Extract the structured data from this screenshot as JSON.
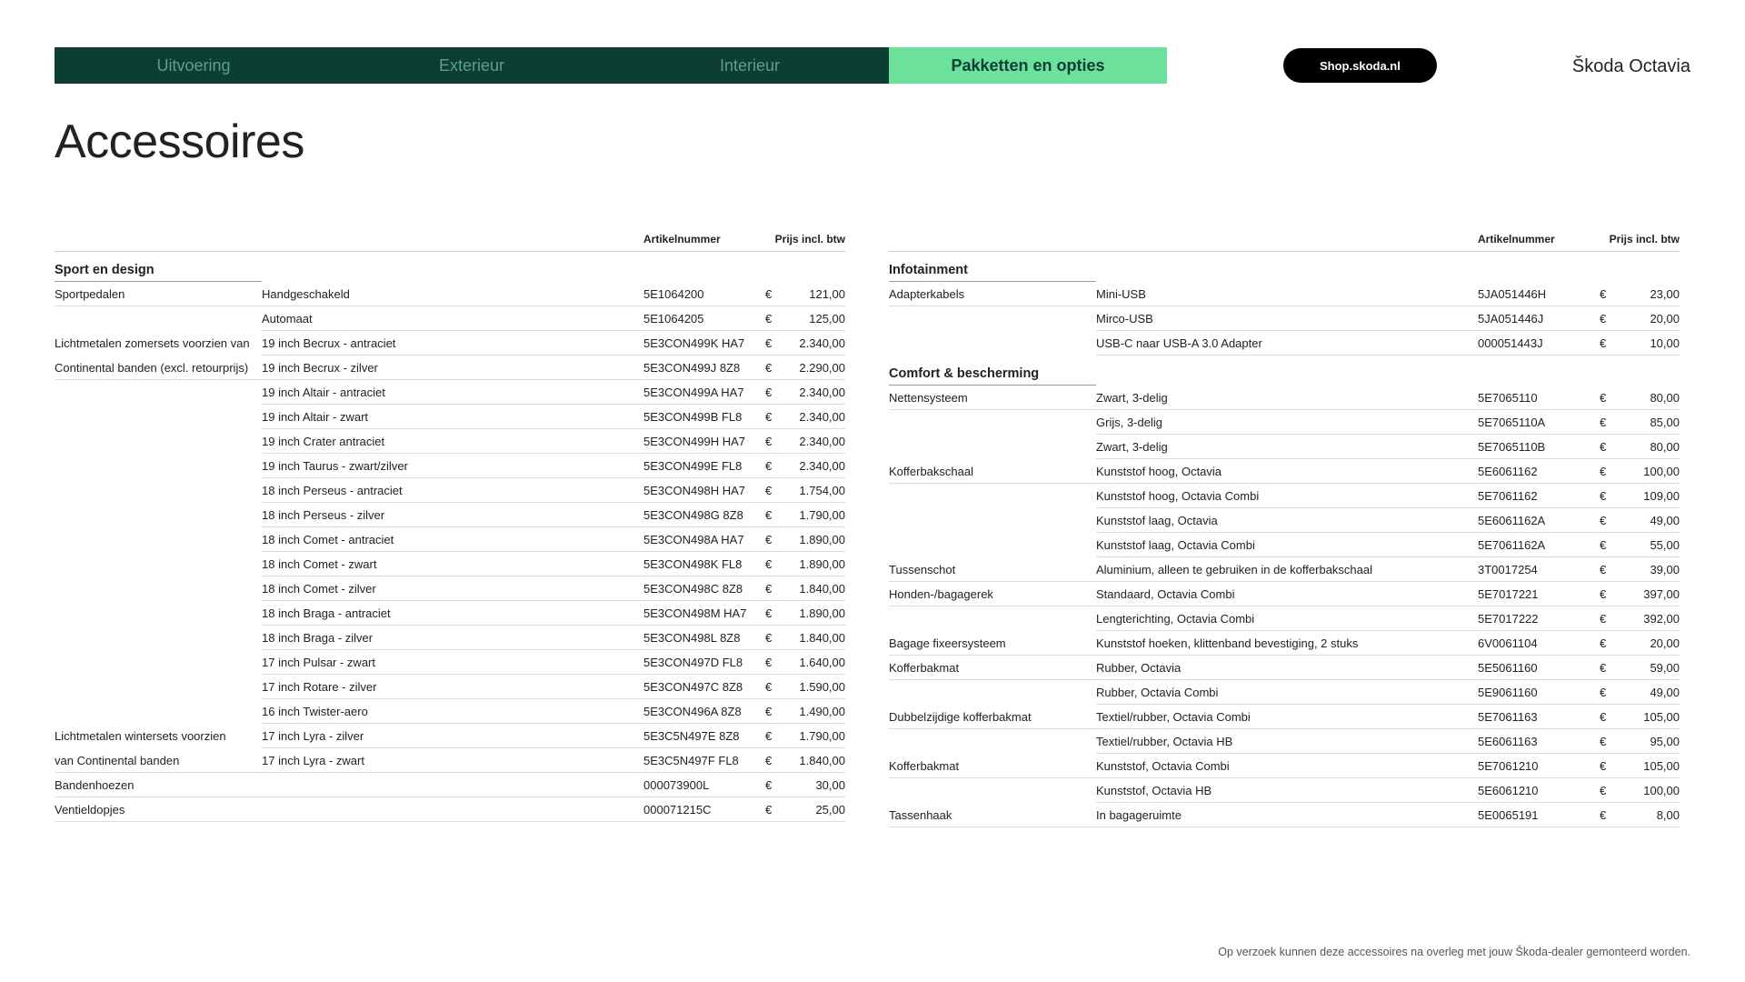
{
  "nav": {
    "tabs": [
      {
        "label": "Uitvoering",
        "active": false
      },
      {
        "label": "Exterieur",
        "active": false
      },
      {
        "label": "Interieur",
        "active": false
      },
      {
        "label": "Pakketten en opties",
        "active": true
      }
    ],
    "shop_button": "Shop.skoda.nl",
    "brand": "Škoda Octavia"
  },
  "page_title": "Accessoires",
  "columns_header": {
    "article": "Artikelnummer",
    "price": "Prijs incl. btw"
  },
  "currency": "€",
  "left": [
    {
      "section": "Sport en design",
      "rows": [
        {
          "cat": "Sportpedalen",
          "cat_border": true,
          "desc": "Handgeschakeld",
          "art": "5E1064200",
          "price": "121,00"
        },
        {
          "cat": "",
          "desc": "Automaat",
          "art": "5E1064205",
          "price": "125,00"
        },
        {
          "cat": "Lichtmetalen zomersets voorzien van",
          "desc": "19 inch Becrux - antraciet",
          "art": "5E3CON499K HA7",
          "price": "2.340,00"
        },
        {
          "cat": "Continental banden (excl. retourprijs)",
          "cat_border": true,
          "desc": "19 inch Becrux - zilver",
          "art": "5E3CON499J 8Z8",
          "price": "2.290,00"
        },
        {
          "cat": "",
          "desc": "19 inch Altair - antraciet",
          "art": "5E3CON499A HA7",
          "price": "2.340,00"
        },
        {
          "cat": "",
          "desc": "19 inch Altair - zwart",
          "art": "5E3CON499B FL8",
          "price": "2.340,00"
        },
        {
          "cat": "",
          "desc": "19 inch Crater antraciet",
          "art": "5E3CON499H HA7",
          "price": "2.340,00"
        },
        {
          "cat": "",
          "desc": "19 inch Taurus - zwart/zilver",
          "art": "5E3CON499E FL8",
          "price": "2.340,00"
        },
        {
          "cat": "",
          "desc": "18 inch Perseus - antraciet",
          "art": "5E3CON498H HA7",
          "price": "1.754,00"
        },
        {
          "cat": "",
          "desc": "18 inch Perseus - zilver",
          "art": "5E3CON498G 8Z8",
          "price": "1.790,00"
        },
        {
          "cat": "",
          "desc": "18 inch Comet - antraciet",
          "art": "5E3CON498A HA7",
          "price": "1.890,00"
        },
        {
          "cat": "",
          "desc": "18 inch Comet - zwart",
          "art": "5E3CON498K FL8",
          "price": "1.890,00"
        },
        {
          "cat": "",
          "desc": "18 inch Comet - zilver",
          "art": "5E3CON498C 8Z8",
          "price": "1.840,00"
        },
        {
          "cat": "",
          "desc": "18 inch Braga - antraciet",
          "art": "5E3CON498M HA7",
          "price": "1.890,00"
        },
        {
          "cat": "",
          "desc": "18 inch Braga - zilver",
          "art": "5E3CON498L 8Z8",
          "price": "1.840,00"
        },
        {
          "cat": "",
          "desc": "17 inch Pulsar - zwart",
          "art": "5E3CON497D FL8",
          "price": "1.640,00"
        },
        {
          "cat": "",
          "desc": "17 inch Rotare - zilver",
          "art": "5E3CON497C 8Z8",
          "price": "1.590,00"
        },
        {
          "cat": "",
          "desc": "16 inch Twister-aero",
          "art": "5E3CON496A 8Z8",
          "price": "1.490,00"
        },
        {
          "cat": "Lichtmetalen wintersets voorzien",
          "desc": "17 inch Lyra - zilver",
          "art": "5E3C5N497E 8Z8",
          "price": "1.790,00"
        },
        {
          "cat": "van Continental banden",
          "cat_border": true,
          "desc": "17 inch Lyra - zwart",
          "art": "5E3C5N497F FL8",
          "price": "1.840,00"
        },
        {
          "cat": "Bandenhoezen",
          "cat_border": true,
          "desc": "",
          "art": "000073900L",
          "price": "30,00"
        },
        {
          "cat": "Ventieldopjes",
          "cat_border": true,
          "desc": "",
          "art": "000071215C",
          "price": "25,00"
        }
      ]
    }
  ],
  "right": [
    {
      "section": "Infotainment",
      "rows": [
        {
          "cat": "Adapterkabels",
          "cat_border": true,
          "desc": "Mini-USB",
          "art": "5JA051446H",
          "price": "23,00"
        },
        {
          "cat": "",
          "desc": "Mirco-USB",
          "art": "5JA051446J",
          "price": "20,00"
        },
        {
          "cat": "",
          "desc": "USB-C naar USB-A 3.0 Adapter",
          "art": "000051443J",
          "price": "10,00"
        }
      ]
    },
    {
      "section": "Comfort & bescherming",
      "rows": [
        {
          "cat": "Nettensysteem",
          "cat_border": true,
          "desc": "Zwart, 3-delig",
          "art": "5E7065110",
          "price": "80,00"
        },
        {
          "cat": "",
          "desc": "Grijs, 3-delig",
          "art": "5E7065110A",
          "price": "85,00"
        },
        {
          "cat": "",
          "desc": "Zwart, 3-delig",
          "art": "5E7065110B",
          "price": "80,00"
        },
        {
          "cat": "Kofferbakschaal",
          "cat_border": true,
          "desc": "Kunststof hoog, Octavia",
          "art": "5E6061162",
          "price": "100,00"
        },
        {
          "cat": "",
          "desc": "Kunststof hoog, Octavia Combi",
          "art": "5E7061162",
          "price": "109,00"
        },
        {
          "cat": "",
          "desc": "Kunststof laag, Octavia",
          "art": "5E6061162A",
          "price": "49,00"
        },
        {
          "cat": "",
          "desc": "Kunststof laag, Octavia Combi",
          "art": "5E7061162A",
          "price": "55,00"
        },
        {
          "cat": "Tussenschot",
          "cat_border": true,
          "desc": "Aluminium, alleen te gebruiken in de kofferbakschaal",
          "art": "3T0017254",
          "price": "39,00"
        },
        {
          "cat": "Honden-/bagagerek",
          "cat_border": true,
          "desc": "Standaard, Octavia Combi",
          "art": "5E7017221",
          "price": "397,00"
        },
        {
          "cat": "",
          "desc": "Lengterichting, Octavia Combi",
          "art": "5E7017222",
          "price": "392,00"
        },
        {
          "cat": "Bagage fixeersysteem",
          "cat_border": true,
          "desc": "Kunststof hoeken, klittenband bevestiging, 2 stuks",
          "art": "6V0061104",
          "price": "20,00"
        },
        {
          "cat": "Kofferbakmat",
          "cat_border": true,
          "desc": "Rubber, Octavia",
          "art": "5E5061160",
          "price": "59,00"
        },
        {
          "cat": "",
          "desc": "Rubber, Octavia Combi",
          "art": "5E9061160",
          "price": "49,00"
        },
        {
          "cat": "Dubbelzijdige kofferbakmat",
          "cat_border": true,
          "desc": "Textiel/rubber, Octavia Combi",
          "art": "5E7061163",
          "price": "105,00"
        },
        {
          "cat": "",
          "desc": "Textiel/rubber, Octavia HB",
          "art": "5E6061163",
          "price": "95,00"
        },
        {
          "cat": "Kofferbakmat",
          "cat_border": true,
          "desc": "Kunststof, Octavia Combi",
          "art": "5E7061210",
          "price": "105,00"
        },
        {
          "cat": "",
          "desc": "Kunststof, Octavia HB",
          "art": "5E6061210",
          "price": "100,00"
        },
        {
          "cat": "Tassenhaak",
          "cat_border": true,
          "desc": "In bagageruimte",
          "art": "5E0065191",
          "price": "8,00"
        }
      ]
    }
  ],
  "footer": "Op verzoek kunnen deze accessoires na overleg met jouw Škoda-dealer gemonteerd worden.",
  "colors": {
    "tab_dark_bg": "#0d3d33",
    "tab_dark_text": "#5aa08f",
    "tab_active_bg": "#6de19b",
    "tab_active_text": "#0d3d33",
    "pill_bg": "#000000",
    "pill_text": "#ffffff",
    "row_border": "#dddddd"
  }
}
